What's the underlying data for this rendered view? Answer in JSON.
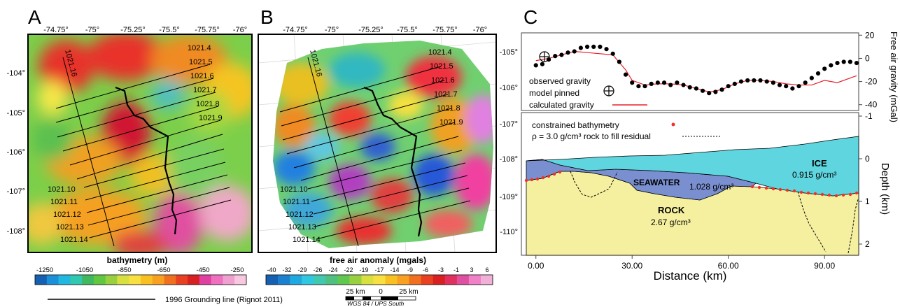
{
  "panels": {
    "a": {
      "letter": "A",
      "lon_ticks": [
        "-74.75°",
        "-75°",
        "-75.25°",
        "-75.5°",
        "-75.75°",
        "-76°"
      ],
      "lat_ticks": [
        "-104°",
        "-105°",
        "-106°",
        "-107°",
        "-108°"
      ],
      "line_labels_right": [
        "1021.4",
        "1021.5",
        "1021.6",
        "1021.7",
        "1021.8",
        "1021.9"
      ],
      "line_labels_left": [
        "1021.10",
        "1021.11",
        "1021.12",
        "1021.13",
        "1021.14"
      ],
      "line_label_vertical": "1021.16",
      "colorbar_title": "bathymetry (m)",
      "colorbar_ticks": [
        "-1250",
        "-1050",
        "-850",
        "-650",
        "-450",
        "-250"
      ]
    },
    "b": {
      "letter": "B",
      "lon_ticks": [
        "-74.75°",
        "-75°",
        "-75.25°",
        "-75.5°",
        "-75.75°",
        "-76°"
      ],
      "line_labels_right": [
        "1021.4",
        "1021.5",
        "1021.6",
        "1021.7",
        "1021.8",
        "1021.9"
      ],
      "line_labels_left": [
        "1021.10",
        "1021.11",
        "1021.12",
        "1021.13",
        "1021.14"
      ],
      "line_label_vertical": "1021.16",
      "colorbar_title": "free air anomaly (mgals)",
      "colorbar_ticks": [
        "-40",
        "-32",
        "-29",
        "-26",
        "-24",
        "-22",
        "-19",
        "-17",
        "-14",
        "-9",
        "-6",
        "-3",
        "-1",
        "3",
        "6"
      ],
      "scalebar_labels": [
        "25 km",
        "0",
        "25 km"
      ],
      "projection": "WGS 84 / UPS South"
    },
    "c": {
      "letter": "C",
      "left_ticks_top": [
        "-105°",
        "-106°"
      ],
      "left_ticks_bottom": [
        "-107°",
        "-108°",
        "-109°",
        "-110°"
      ],
      "gravity_ylabel": "Free air gravity (mGal)",
      "gravity_ticks": [
        "20",
        "0",
        "-20",
        "-40"
      ],
      "depth_ylabel": "Depth (km)",
      "depth_ticks": [
        "-1",
        "0",
        "1",
        "2"
      ],
      "x_ticks": [
        "0.00",
        "30.00",
        "60.00",
        "90.00"
      ],
      "xlabel": "Distance (km)",
      "legend_top": [
        "observed gravity",
        "model pinned",
        "calculated gravity"
      ],
      "legend_bottom": [
        "constrained bathymetry",
        "ρ = 3.0 g/cm³  rock to fill residual"
      ],
      "ice_label": "ICE",
      "ice_density": "0.915 g/cm³",
      "seawater_label": "SEAWATER",
      "seawater_density": "1.028 g/cm³",
      "rock_label": "ROCK",
      "rock_density": "2.67 g/cm³"
    }
  },
  "grounding_line_legend": "1996 Grounding line (Rignot 2011)",
  "colors": {
    "ice": "#5fd6df",
    "seawater": "#7a8fd0",
    "rock": "#f5f0a0",
    "observed": "#000000",
    "calculated": "#e8202a",
    "bathymetry_points": "#f0302a"
  },
  "chart_data": {
    "type": "line",
    "xlabel": "Distance (km)",
    "ylabel": "Free air gravity (mGal)",
    "xlim": [
      -3,
      100
    ],
    "ylim": [
      -45,
      22
    ],
    "series": [
      {
        "name": "observed gravity",
        "x": [
          0,
          2,
          4,
          6,
          8,
          10,
          12,
          14,
          16,
          18,
          20,
          22,
          24,
          26,
          28,
          30,
          32,
          34,
          36,
          38,
          40,
          42,
          44,
          46,
          48,
          50,
          52,
          54,
          56,
          58,
          60,
          62,
          64,
          66,
          68,
          70,
          72,
          74,
          76,
          78,
          80,
          82,
          84,
          86,
          88,
          90,
          92,
          94,
          96,
          98,
          100
        ],
        "y": [
          -6,
          -5,
          -1,
          2,
          3,
          5,
          6,
          9,
          10,
          10,
          10,
          8,
          4,
          -3,
          -14,
          -21,
          -24,
          -24,
          -22,
          -21,
          -21,
          -23,
          -21,
          -23,
          -25,
          -26,
          -28,
          -30,
          -29,
          -27,
          -24,
          -22,
          -20,
          -19,
          -19,
          -19,
          -20,
          -21,
          -23,
          -24,
          -26,
          -24,
          -21,
          -17,
          -13,
          -9,
          -6,
          -4,
          -3,
          -3,
          -4
        ]
      },
      {
        "name": "calculated gravity",
        "x": [
          0,
          4,
          8,
          12,
          16,
          20,
          24,
          28,
          30,
          34,
          38,
          42,
          46,
          50,
          54,
          58,
          62,
          66,
          70,
          74,
          78,
          82,
          86,
          90,
          94,
          98,
          100
        ],
        "y": [
          -2,
          0,
          3,
          6,
          5,
          4,
          3,
          -10,
          -19,
          -23,
          -22,
          -22,
          -23,
          -26,
          -29,
          -27,
          -22,
          -19,
          -19,
          -20,
          -22,
          -23,
          -23,
          -19,
          -21,
          -17,
          -15
        ]
      }
    ]
  }
}
